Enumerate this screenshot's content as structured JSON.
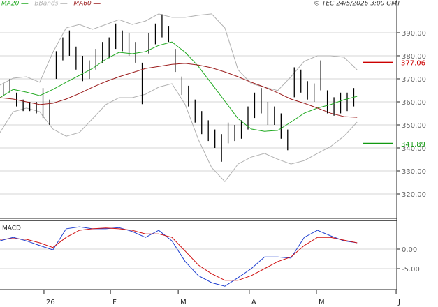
{
  "chart_data": [
    {
      "type": "ohlc",
      "credit": "© TEC 24/5/2026 3:00 GMT",
      "xlim": [
        0,
        120
      ],
      "ylim": [
        309.4,
        401.2
      ],
      "yticks": [
        {
          "value": 320,
          "label": "320.00"
        },
        {
          "value": 330,
          "label": "330.00"
        },
        {
          "value": 340,
          "label": "340.00"
        },
        {
          "value": 350,
          "label": "350.00"
        },
        {
          "value": 360,
          "label": "360.00"
        },
        {
          "value": 370,
          "label": "370.00"
        },
        {
          "value": 380,
          "label": "380.00"
        },
        {
          "value": 390,
          "label": "390.00"
        }
      ],
      "grid": true,
      "bar_color": "#000000",
      "bars": {
        "x": [
          1,
          3,
          5,
          7,
          9,
          11,
          13,
          15,
          17,
          19,
          21,
          23,
          25,
          27,
          29,
          31,
          33,
          35,
          37,
          39,
          41,
          43,
          45,
          47,
          49,
          51,
          53,
          55,
          57,
          59,
          61,
          63,
          65,
          67,
          69,
          71,
          73,
          75,
          77,
          79,
          81,
          83,
          85,
          87,
          89,
          91,
          93,
          95,
          97,
          99,
          101,
          103,
          105,
          107
        ],
        "high": [
          368,
          370,
          364,
          361,
          360,
          360,
          366,
          361,
          382,
          388,
          391,
          384,
          380,
          378,
          383,
          386,
          388,
          394,
          391,
          390,
          386,
          377,
          390,
          394,
          398,
          393,
          383,
          371,
          367,
          361,
          356,
          352,
          348,
          346,
          351,
          350,
          352,
          358,
          364,
          366,
          360,
          358,
          355,
          348,
          375,
          374,
          369,
          368,
          378,
          365,
          362,
          364,
          364,
          366
        ],
        "low": [
          363,
          364,
          358,
          356,
          356,
          355,
          353,
          350,
          370,
          378,
          380,
          374,
          369,
          370,
          374,
          377,
          379,
          383,
          382,
          380,
          377,
          359,
          381,
          385,
          388,
          386,
          373,
          363,
          358,
          351,
          346,
          343,
          340,
          334,
          342,
          343,
          344,
          348,
          353,
          355,
          350,
          350,
          344,
          339,
          362,
          364,
          361,
          360,
          365,
          355,
          354,
          355,
          356,
          358
        ]
      },
      "line_x": [
        0,
        4,
        8,
        12,
        16,
        20,
        24,
        28,
        32,
        36,
        40,
        44,
        48,
        52,
        56,
        60,
        64,
        68,
        72,
        76,
        80,
        84,
        88,
        92,
        96,
        100,
        104,
        108
      ],
      "series": [
        {
          "name": "MA20",
          "color": "#22aa22",
          "values": [
            361.8,
            365.4,
            364.2,
            362.7,
            365.4,
            368.5,
            371.5,
            374.5,
            378.5,
            381.5,
            380.9,
            381.8,
            384.5,
            386.0,
            381.5,
            375.4,
            367.9,
            360.3,
            352.7,
            348.2,
            347.2,
            347.6,
            351.2,
            355.1,
            357.3,
            358.8,
            360.9,
            362.4
          ]
        },
        {
          "name": "BBands",
          "color": "#b0b0b0",
          "upper": [
            367.3,
            370.3,
            370.9,
            368.5,
            381.5,
            392.1,
            393.6,
            391.5,
            393.6,
            395.7,
            393.6,
            395.1,
            398.2,
            396.7,
            396.7,
            397.6,
            398.2,
            392.1,
            373.9,
            367.9,
            366.4,
            364.9,
            370.9,
            377.6,
            380.0,
            380.0,
            379.4,
            373.9
          ],
          "lower": [
            346.7,
            355.7,
            357.3,
            355.7,
            348.2,
            345.1,
            346.7,
            352.7,
            358.8,
            361.8,
            361.8,
            363.3,
            366.4,
            367.9,
            358.8,
            343.6,
            331.5,
            325.4,
            333.0,
            336.0,
            337.6,
            335.1,
            333.0,
            334.5,
            337.6,
            340.6,
            345.1,
            351.2
          ]
        },
        {
          "name": "MA60",
          "color": "#9b1c1c",
          "values": [
            361.8,
            361.2,
            360.0,
            358.8,
            359.4,
            361.2,
            363.6,
            366.4,
            368.8,
            370.9,
            372.7,
            374.5,
            375.4,
            376.3,
            376.7,
            376.0,
            374.8,
            373.0,
            370.9,
            368.5,
            366.4,
            363.9,
            361.2,
            359.4,
            357.3,
            355.1,
            353.6,
            353.3
          ]
        }
      ],
      "annotations": [
        {
          "value": 377.06,
          "color": "#cc0000"
        },
        {
          "value": 341.89,
          "color": "#119911"
        }
      ]
    },
    {
      "type": "line",
      "title": "MACD",
      "xlim": [
        0,
        120
      ],
      "xticks": [
        {
          "value": 13.3,
          "label": "26"
        },
        {
          "value": 33.4,
          "label": "F"
        },
        {
          "value": 53.9,
          "label": "M"
        },
        {
          "value": 75.4,
          "label": "A"
        },
        {
          "value": 95.7,
          "label": "M"
        },
        {
          "value": 119.8,
          "label": "J"
        }
      ],
      "ylim": [
        -10.36,
        7.32
      ],
      "yticks": [
        {
          "value": -5,
          "label": "-5.00"
        },
        {
          "value": 0,
          "label": "0.00"
        }
      ],
      "grid": true,
      "x": [
        0,
        4,
        8,
        12,
        16,
        20,
        24,
        28,
        32,
        36,
        40,
        44,
        48,
        52,
        56,
        60,
        64,
        68,
        72,
        76,
        80,
        84,
        88,
        92,
        96,
        100,
        104,
        108
      ],
      "series": [
        {
          "color": "#1f3fd0",
          "values": [
            2.1,
            3.0,
            2.1,
            0.9,
            -0.2,
            5.2,
            5.7,
            5.2,
            5.2,
            5.5,
            4.5,
            3.0,
            4.8,
            2.1,
            -3.2,
            -6.8,
            -8.6,
            -9.5,
            -7.3,
            -5.0,
            -2.0,
            -2.0,
            -2.3,
            3.0,
            4.8,
            3.4,
            2.1,
            1.6
          ]
        },
        {
          "color": "#d01010",
          "values": [
            2.5,
            2.7,
            2.5,
            1.6,
            0.4,
            3.0,
            4.8,
            5.2,
            5.4,
            5.2,
            4.8,
            3.9,
            3.9,
            3.0,
            -0.5,
            -4.1,
            -6.3,
            -8.0,
            -8.0,
            -6.8,
            -5.0,
            -3.2,
            -2.0,
            0.9,
            3.0,
            3.0,
            2.3,
            1.6
          ]
        }
      ]
    }
  ]
}
